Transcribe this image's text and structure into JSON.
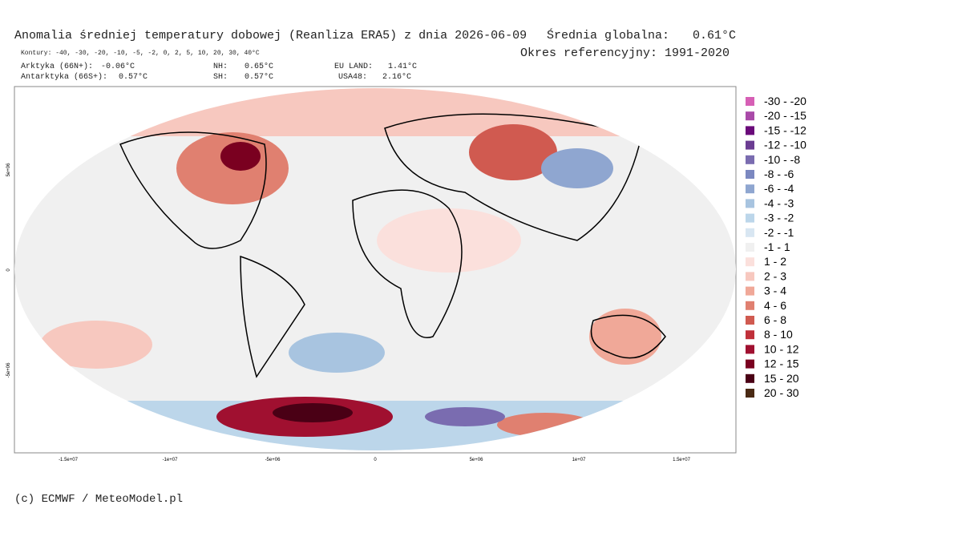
{
  "header": {
    "title": "Anomalia średniej temperatury dobowej (Reanliza ERA5) z dnia 2026-06-09",
    "global_label": "Średnia globalna:",
    "global_value": "0.61°C",
    "reference": "Okres referencyjny: 1991-2020",
    "contours": "Kontury: -40, -30, -20, -10, -5, -2, 0, 2, 5, 10, 20, 30, 40°C"
  },
  "stats": [
    [
      "Arktyka (66N+):",
      "-0.06°C"
    ],
    [
      "NH:",
      "0.65°C"
    ],
    [
      "EU LAND:",
      "1.41°C"
    ],
    [
      "Antarktyka (66S+):",
      "0.57°C"
    ],
    [
      "SH:",
      "0.57°C"
    ],
    [
      "USA48:",
      "2.16°C"
    ]
  ],
  "axes": {
    "x_labels": [
      "-1.5e+07",
      "-1e+07",
      "-5e+06",
      "0",
      "5e+06",
      "1e+07",
      "1.5e+07"
    ],
    "y_labels": [
      "5e+06",
      "0",
      "-5e+06"
    ]
  },
  "legend": [
    {
      "label": "-30 - -20",
      "color": "#d65fb5"
    },
    {
      "label": "-20 - -15",
      "color": "#a94aa8"
    },
    {
      "label": "-15 - -12",
      "color": "#6a0a7a"
    },
    {
      "label": "-12 - -10",
      "color": "#6b3d92"
    },
    {
      "label": "-10 - -8",
      "color": "#7a6cb0"
    },
    {
      "label": "-8 - -6",
      "color": "#7b88c0"
    },
    {
      "label": "-6 - -4",
      "color": "#8fa6d0"
    },
    {
      "label": "-4 - -3",
      "color": "#a8c4e0"
    },
    {
      "label": "-3 - -2",
      "color": "#bcd6ea"
    },
    {
      "label": "-2 - -1",
      "color": "#d8e6f2"
    },
    {
      "label": "-1 - 1",
      "color": "#f0f0f0"
    },
    {
      "label": "1 - 2",
      "color": "#fbe0dc"
    },
    {
      "label": "2 - 3",
      "color": "#f7c8bf"
    },
    {
      "label": "3 - 4",
      "color": "#f0a898"
    },
    {
      "label": "4 - 6",
      "color": "#e08070"
    },
    {
      "label": "6 - 8",
      "color": "#d05a50"
    },
    {
      "label": "8 - 10",
      "color": "#c0303a"
    },
    {
      "label": "10 - 12",
      "color": "#a01030"
    },
    {
      "label": "12 - 15",
      "color": "#7a0020"
    },
    {
      "label": "15 - 20",
      "color": "#4a0015"
    },
    {
      "label": "20 - 30",
      "color": "#4a2a14"
    }
  ],
  "footer": "(c) ECMWF / MeteoModel.pl"
}
